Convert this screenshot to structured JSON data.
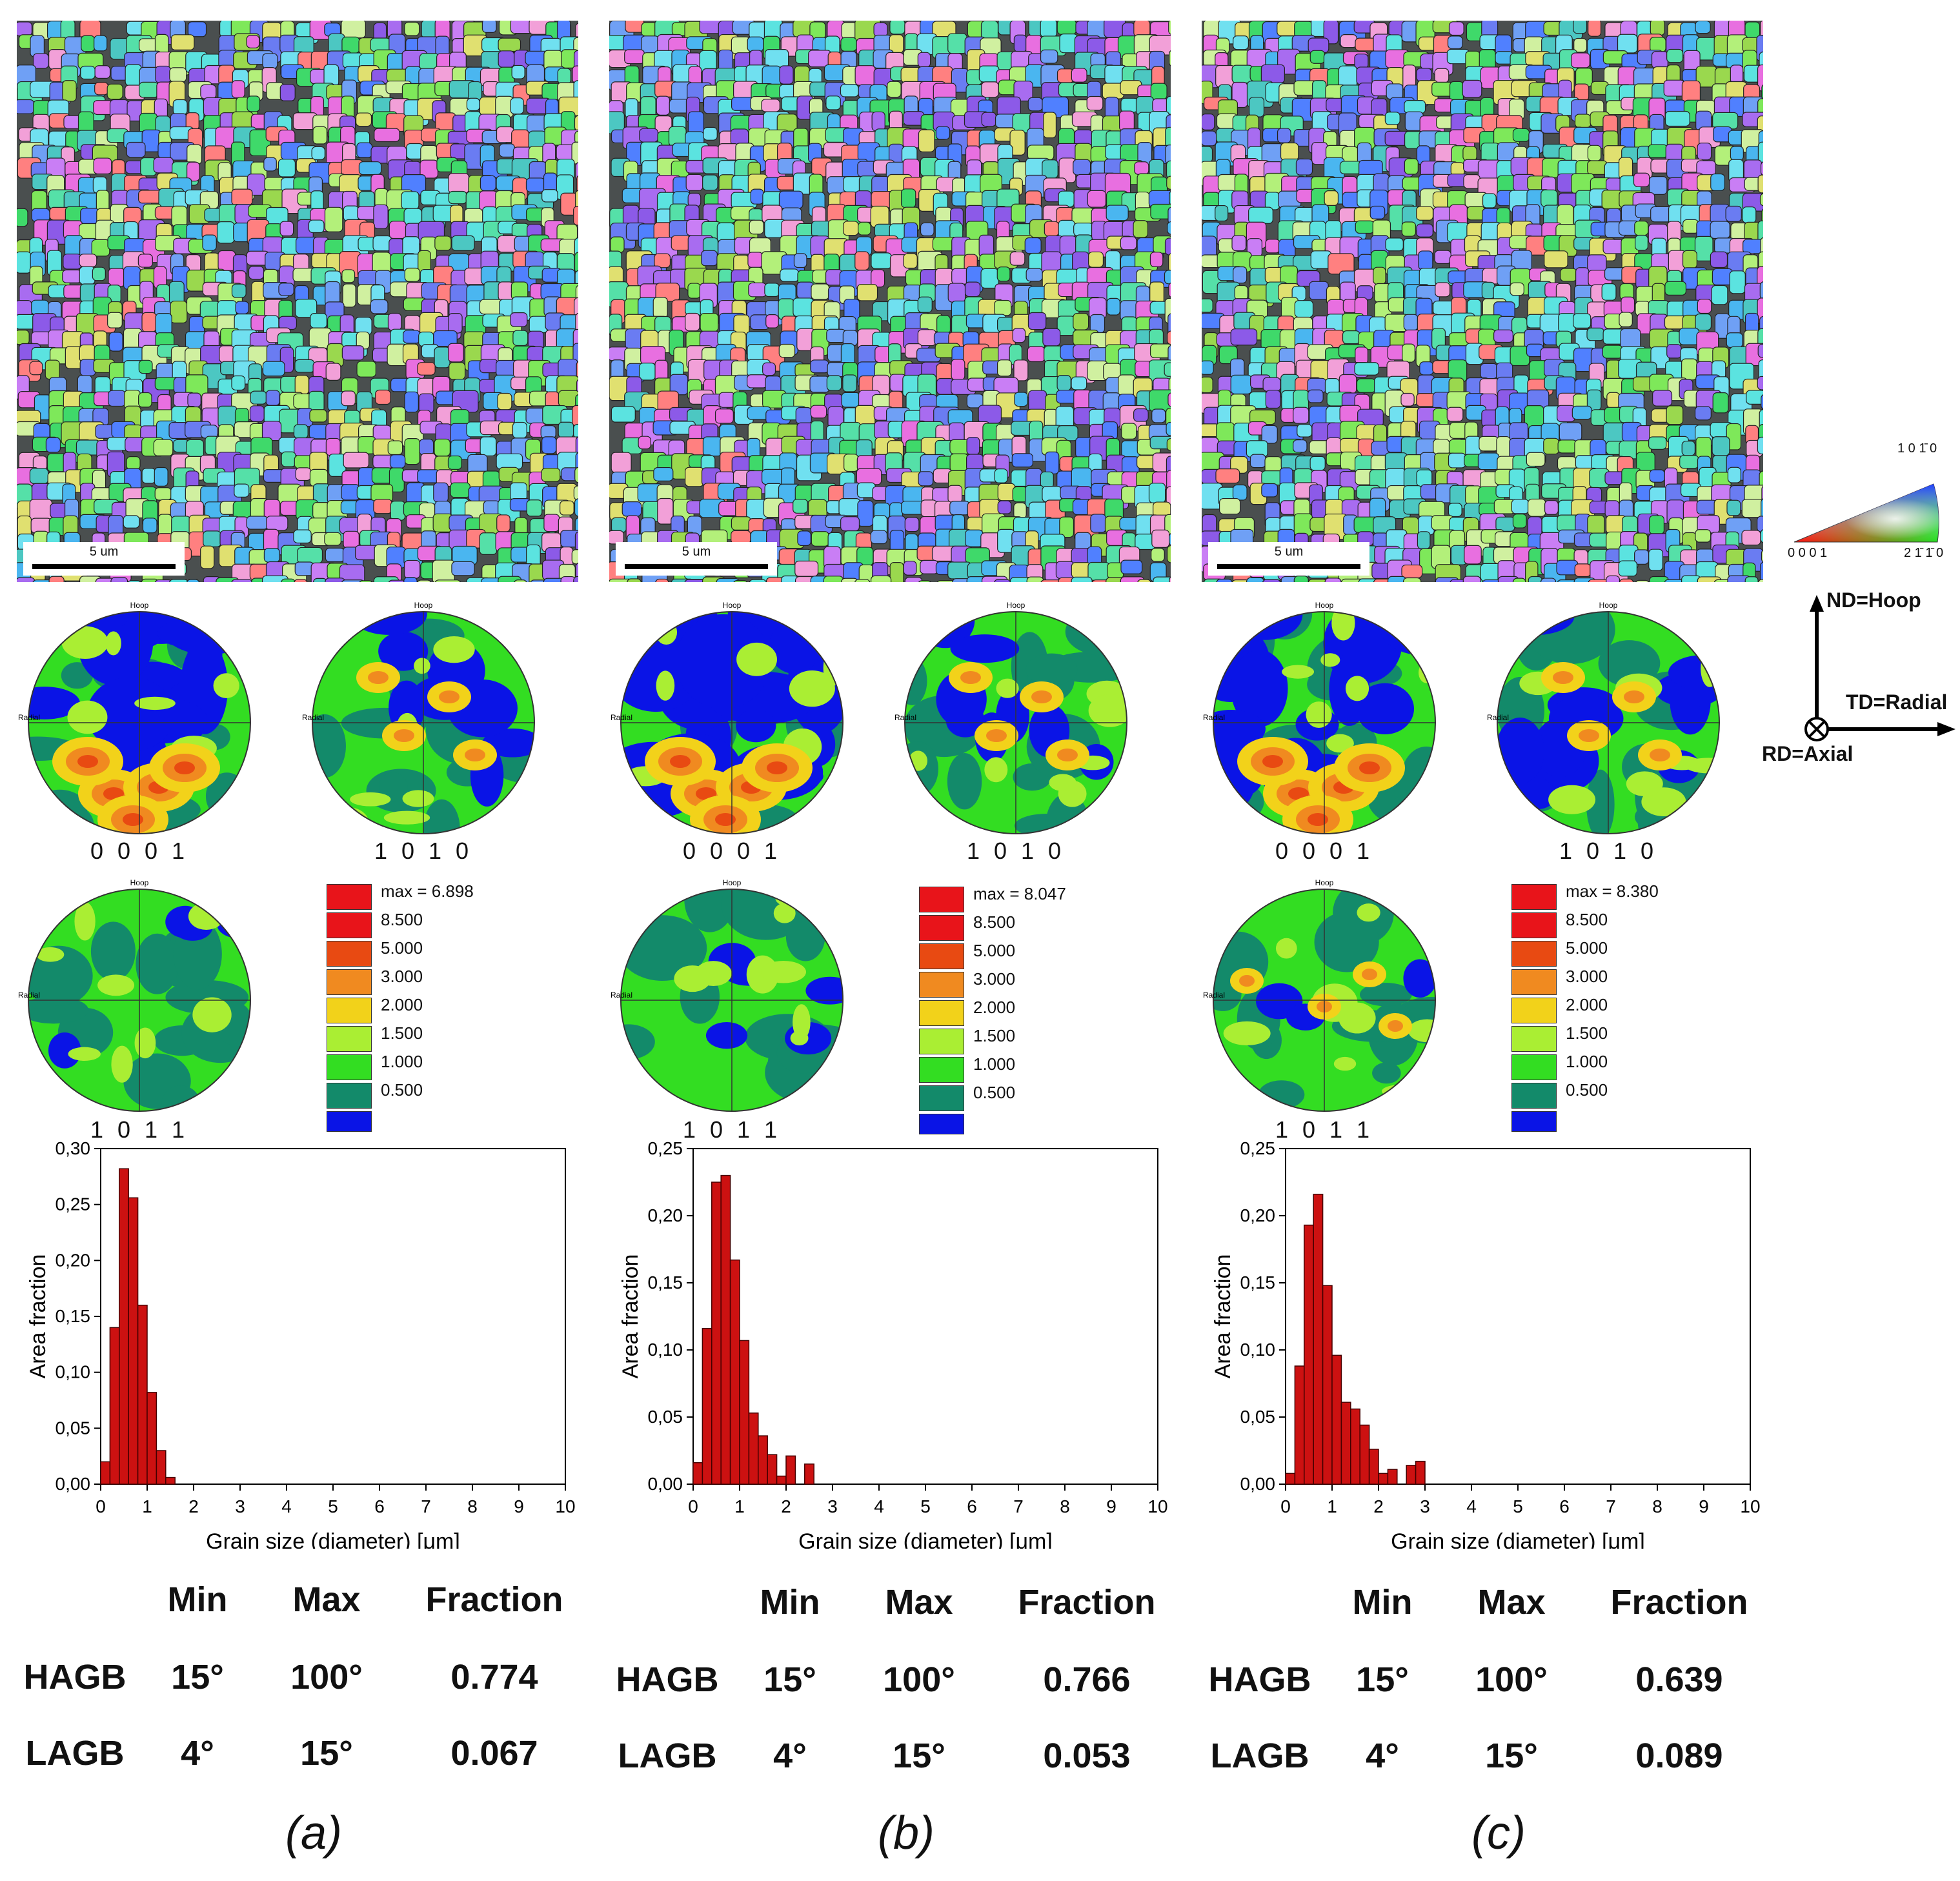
{
  "colors": {
    "bar_fill": "#cc1111",
    "pf_blue": "#0a14e6",
    "pf_teal": "#138a6a",
    "pf_green": "#33dd22",
    "pf_lightgreen": "#aaee33",
    "pf_yellow": "#f2d21a",
    "pf_orange": "#f08a20",
    "pf_darkorange": "#e84a12",
    "pf_red": "#e8141a"
  },
  "ipf_key": {
    "top": "1 0 1̄ 0",
    "left": "0 0 0 1",
    "right": "2 1̄ 1̄ 0"
  },
  "axes": {
    "nd": "ND=Hoop",
    "td": "TD=Radial",
    "rd": "RD=Axial"
  },
  "pole_figure_labels": {
    "hoop": "Hoop",
    "radial": "Radial"
  },
  "legend_levels": [
    "8.500",
    "5.000",
    "3.000",
    "2.000",
    "1.500",
    "1.000",
    "0.500"
  ],
  "table_headers": {
    "min": "Min",
    "max": "Max",
    "fraction": "Fraction"
  },
  "panels": [
    {
      "caption": "(a)",
      "scale_bar": "5 um",
      "pf_labels": [
        "0 0 0 1",
        "1 0 1 0",
        "1 0 1 1"
      ],
      "legend_max": "max = 6.898",
      "hagb": {
        "label": "HAGB",
        "min": "15°",
        "max": "100°",
        "fraction": "0.774"
      },
      "lagb": {
        "label": "LAGB",
        "min": "4°",
        "max": "15°",
        "fraction": "0.067"
      }
    },
    {
      "caption": "(b)",
      "scale_bar": "5 um",
      "pf_labels": [
        "0 0 0 1",
        "1 0 1 0",
        "1 0 1 1"
      ],
      "legend_max": "max = 8.047",
      "hagb": {
        "label": "HAGB",
        "min": "15°",
        "max": "100°",
        "fraction": "0.766"
      },
      "lagb": {
        "label": "LAGB",
        "min": "4°",
        "max": "15°",
        "fraction": "0.053"
      }
    },
    {
      "caption": "(c)",
      "scale_bar": "5 um",
      "pf_labels": [
        "0 0 0 1",
        "1 0 1 0",
        "1 0 1 1"
      ],
      "legend_max": "max = 8.380",
      "hagb": {
        "label": "HAGB",
        "min": "15°",
        "max": "100°",
        "fraction": "0.639"
      },
      "lagb": {
        "label": "LAGB",
        "min": "4°",
        "max": "15°",
        "fraction": "0.089"
      }
    }
  ],
  "chart_data": [
    {
      "type": "bar",
      "title": "",
      "xlabel": "Grain size (diameter) [μm]",
      "ylabel": "Area fraction",
      "xlim": [
        0,
        10
      ],
      "ylim": [
        0,
        0.3
      ],
      "xticks": [
        "0",
        "1",
        "2",
        "3",
        "4",
        "5",
        "6",
        "7",
        "8",
        "9",
        "10"
      ],
      "yticks": [
        "0,00",
        "0,05",
        "0,10",
        "0,15",
        "0,20",
        "0,25",
        "0,30"
      ],
      "bin_width": 0.2,
      "x": [
        0.1,
        0.3,
        0.5,
        0.7,
        0.9,
        1.1,
        1.3,
        1.5
      ],
      "values": [
        0.02,
        0.14,
        0.282,
        0.256,
        0.16,
        0.082,
        0.03,
        0.006
      ]
    },
    {
      "type": "bar",
      "title": "",
      "xlabel": "Grain size (diameter) [μm]",
      "ylabel": "Area fraction",
      "xlim": [
        0,
        10
      ],
      "ylim": [
        0,
        0.25
      ],
      "xticks": [
        "0",
        "1",
        "2",
        "3",
        "4",
        "5",
        "6",
        "7",
        "8",
        "9",
        "10"
      ],
      "yticks": [
        "0,00",
        "0,05",
        "0,10",
        "0,15",
        "0,20",
        "0,25"
      ],
      "bin_width": 0.2,
      "x": [
        0.1,
        0.3,
        0.5,
        0.7,
        0.9,
        1.1,
        1.3,
        1.5,
        1.7,
        1.9,
        2.1,
        2.5
      ],
      "values": [
        0.016,
        0.116,
        0.225,
        0.23,
        0.167,
        0.107,
        0.053,
        0.036,
        0.022,
        0.006,
        0.021,
        0.015
      ]
    },
    {
      "type": "bar",
      "title": "",
      "xlabel": "Grain size (diameter) [μm]",
      "ylabel": "Area fraction",
      "xlim": [
        0,
        10
      ],
      "ylim": [
        0,
        0.25
      ],
      "xticks": [
        "0",
        "1",
        "2",
        "3",
        "4",
        "5",
        "6",
        "7",
        "8",
        "9",
        "10"
      ],
      "yticks": [
        "0,00",
        "0,05",
        "0,10",
        "0,15",
        "0,20",
        "0,25"
      ],
      "bin_width": 0.2,
      "x": [
        0.1,
        0.3,
        0.5,
        0.7,
        0.9,
        1.1,
        1.3,
        1.5,
        1.7,
        1.9,
        2.1,
        2.3,
        2.7,
        2.9
      ],
      "values": [
        0.008,
        0.088,
        0.193,
        0.216,
        0.148,
        0.096,
        0.061,
        0.056,
        0.044,
        0.026,
        0.008,
        0.011,
        0.014,
        0.017
      ]
    }
  ]
}
